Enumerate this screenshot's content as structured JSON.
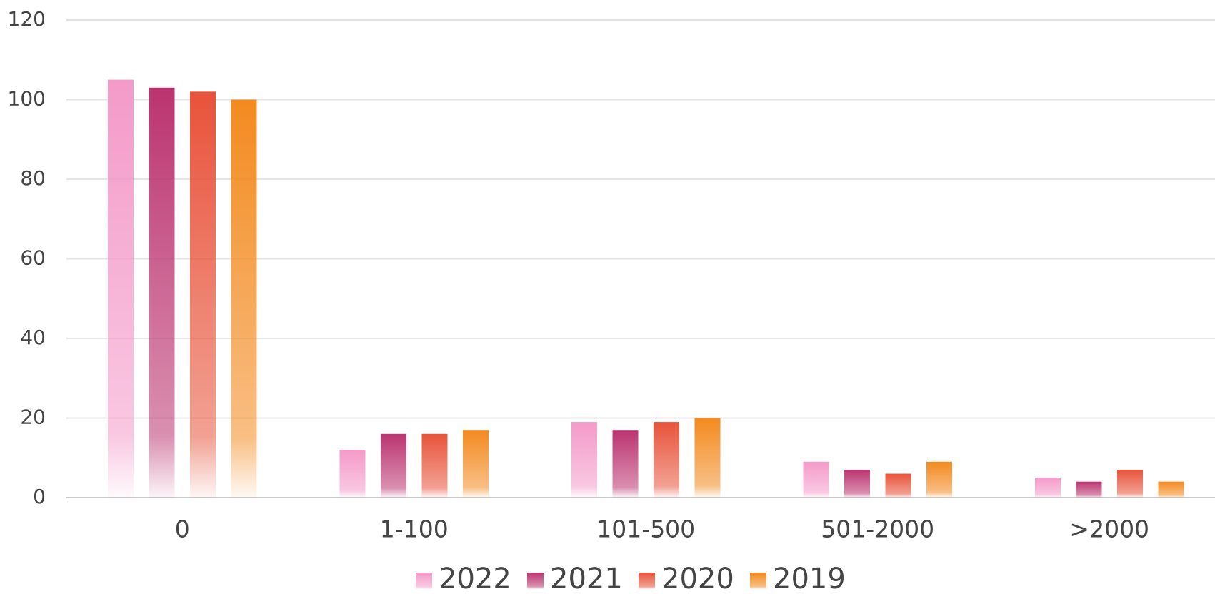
{
  "chart_data": {
    "type": "bar",
    "categories": [
      "0",
      "1-100",
      "101-500",
      "501-2000",
      ">2000"
    ],
    "series": [
      {
        "name": "2022",
        "color": "#f49ac9",
        "values": [
          105,
          12,
          19,
          9,
          5
        ]
      },
      {
        "name": "2021",
        "color": "#bb3470",
        "values": [
          103,
          16,
          17,
          7,
          4
        ]
      },
      {
        "name": "2020",
        "color": "#e8533a",
        "values": [
          102,
          16,
          19,
          6,
          7
        ]
      },
      {
        "name": "2019",
        "color": "#f38a1f",
        "values": [
          100,
          17,
          20,
          9,
          4
        ]
      }
    ],
    "ylim": [
      0,
      120
    ],
    "yticks": [
      0,
      20,
      40,
      60,
      80,
      100,
      120
    ],
    "grid": true,
    "legend": "bottom"
  }
}
